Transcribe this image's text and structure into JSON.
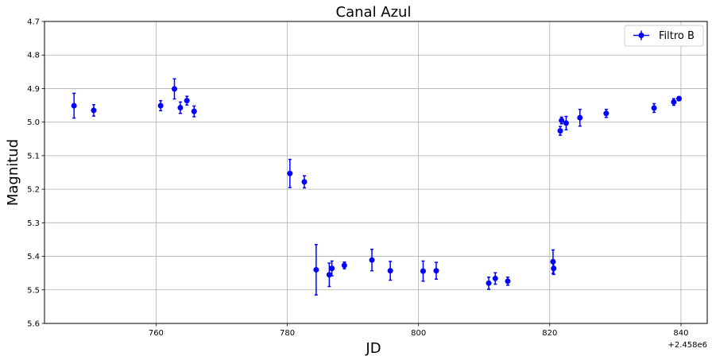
{
  "chart_data": {
    "type": "scatter",
    "title": "Canal Azul",
    "xlabel": "JD",
    "ylabel": "Magnitud",
    "x_offset_label": "+2.458e6",
    "xlim": [
      743,
      844
    ],
    "ylim": [
      4.7,
      5.6
    ],
    "y_inverted": true,
    "grid": true,
    "legend_position": "top-right",
    "xticks": [
      760,
      780,
      800,
      820,
      840
    ],
    "xtick_labels": [
      "760",
      "780",
      "800",
      "820",
      "840"
    ],
    "yticks": [
      4.7,
      4.8,
      4.9,
      5.0,
      5.1,
      5.2,
      5.3,
      5.4,
      5.5,
      5.6
    ],
    "ytick_labels": [
      "4.7",
      "4.8",
      "4.9",
      "5.0",
      "5.1",
      "5.2",
      "5.3",
      "5.4",
      "5.5",
      "5.6"
    ],
    "series": [
      {
        "name": "Filtro B",
        "color": "#0000ff",
        "x": [
          747.5,
          750.5,
          760.7,
          762.8,
          763.7,
          764.7,
          765.8,
          780.4,
          782.6,
          784.4,
          786.4,
          786.8,
          788.7,
          792.9,
          795.7,
          800.7,
          802.7,
          810.7,
          811.7,
          813.6,
          820.5,
          820.6,
          821.6,
          821.8,
          822.5,
          824.6,
          828.6,
          835.9,
          838.9,
          839.7
        ],
        "y": [
          4.951,
          4.965,
          4.951,
          4.901,
          4.957,
          4.936,
          4.968,
          5.153,
          5.178,
          5.44,
          5.455,
          5.436,
          5.427,
          5.411,
          5.443,
          5.444,
          5.443,
          5.48,
          5.466,
          5.474,
          5.416,
          5.436,
          5.026,
          4.995,
          5.003,
          4.987,
          4.974,
          4.958,
          4.94,
          4.93
        ],
        "yerr": [
          0.037,
          0.017,
          0.015,
          0.03,
          0.017,
          0.013,
          0.016,
          0.042,
          0.018,
          0.075,
          0.035,
          0.022,
          0.01,
          0.032,
          0.028,
          0.03,
          0.025,
          0.018,
          0.017,
          0.012,
          0.035,
          0.018,
          0.013,
          0.01,
          0.02,
          0.025,
          0.012,
          0.013,
          0.01,
          0.006
        ]
      }
    ]
  }
}
